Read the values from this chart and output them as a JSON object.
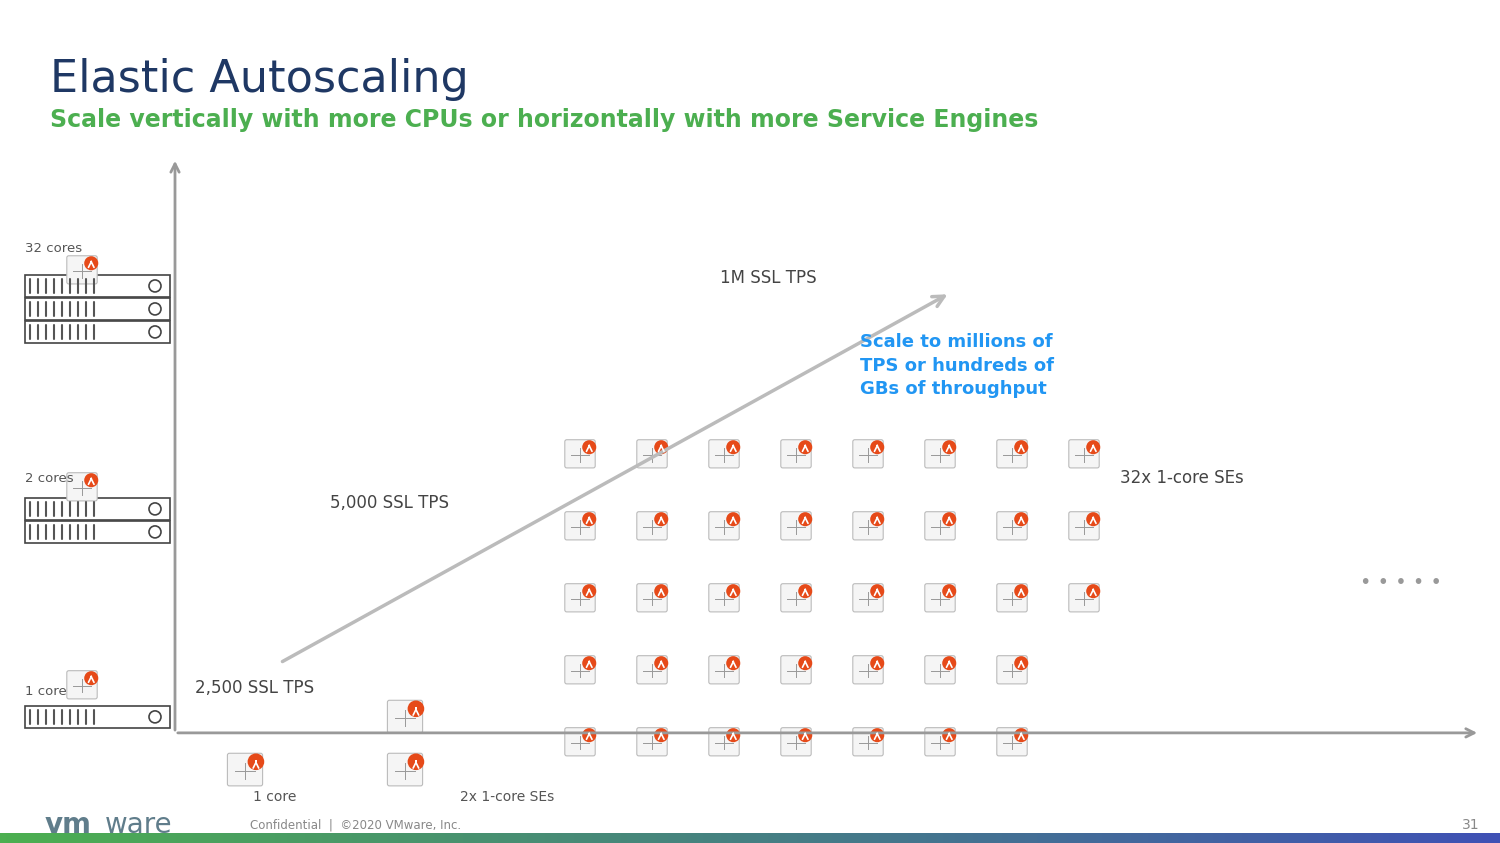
{
  "title": "Elastic Autoscaling",
  "subtitle": "Scale vertically with more CPUs or horizontally with more Service Engines",
  "title_color": "#1F3864",
  "subtitle_color": "#4CAF50",
  "bg_color": "#FFFFFF",
  "axis_color": "#999999",
  "label_1core": "1 core",
  "label_2cores": "2 cores",
  "label_32cores": "32 cores",
  "label_2500": "2,500 SSL TPS",
  "label_5000": "5,000 SSL TPS",
  "label_1M": "1M SSL TPS",
  "label_2x": "2x 1-core SEs",
  "label_32x": "32x 1-core SEs",
  "label_scale": "Scale to millions of\nTPS or hundreds of\nGBs of throughput",
  "scale_color": "#2196F3",
  "label_1core_h": "1 core",
  "footer_confidential": "Confidential  |  ©2020 VMware, Inc.",
  "footer_page": "31",
  "footer_color": "#888888",
  "vmware_color": "#607D8B",
  "orange_color": "#E64A19",
  "server_color": "#444444",
  "server_fill": "#FFFFFF",
  "stripe_color": "#555555",
  "dots_color": "#999999",
  "arrow_color": "#AAAAAA",
  "gradient_left": "#4CAF50",
  "gradient_right": "#3F51B5"
}
